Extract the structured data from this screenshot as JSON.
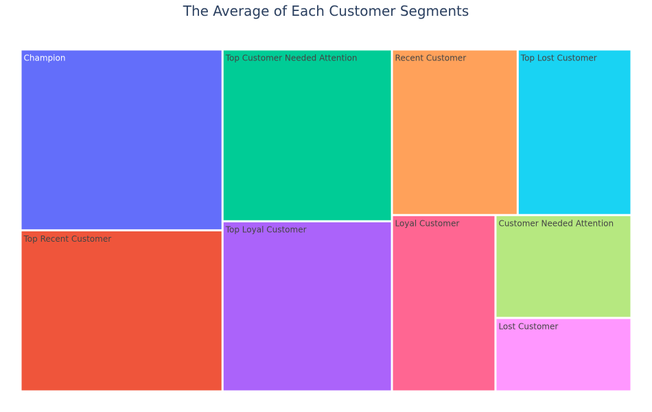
{
  "chart_data": {
    "type": "treemap",
    "title": "The Average of Each Customer Segments",
    "categories": [
      "Champion",
      "Top Recent Customer",
      "Top Customer Needed Attention",
      "Top Loyal Customer",
      "Recent Customer",
      "Top Lost Customer",
      "Loyal Customer",
      "Customer Needed Attention",
      "Lost Customer"
    ],
    "values": [
      12.8,
      11.4,
      10.2,
      10.1,
      7.3,
      6.6,
      6.4,
      4.9,
      3.5
    ],
    "colors": [
      "#636efa",
      "#ef553b",
      "#00cc96",
      "#ab63fa",
      "#ffa15a",
      "#19d3f3",
      "#ff6692",
      "#b6e880",
      "#ff97ff"
    ],
    "label_colors": [
      "#ffffff",
      "#444444",
      "#444444",
      "#444444",
      "#444444",
      "#444444",
      "#444444",
      "#444444",
      "#444444"
    ]
  }
}
